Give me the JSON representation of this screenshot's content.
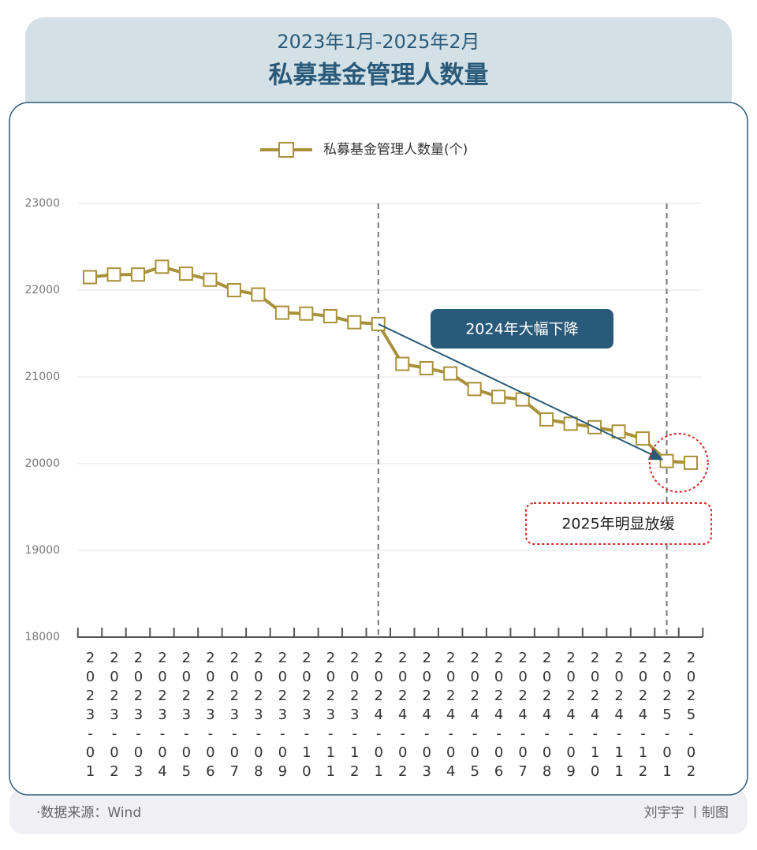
{
  "chart_data": {
    "type": "line",
    "subtitle": "2023年1月-2025年2月",
    "title": "私募基金管理人数量",
    "categories": [
      "2023-01",
      "2023-02",
      "2023-03",
      "2023-04",
      "2023-05",
      "2023-06",
      "2023-07",
      "2023-08",
      "2023-09",
      "2023-10",
      "2023-11",
      "2023-12",
      "2024-01",
      "2024-02",
      "2024-03",
      "2024-04",
      "2024-05",
      "2024-06",
      "2024-07",
      "2024-08",
      "2024-09",
      "2024-10",
      "2024-11",
      "2024-12",
      "2025-01",
      "2025-02"
    ],
    "series": [
      {
        "name": "私募基金管理人数量(个)",
        "color": "#a8913a",
        "values": [
          22150,
          22180,
          22180,
          22270,
          22190,
          22120,
          22000,
          21950,
          21740,
          21730,
          21700,
          21630,
          21610,
          21150,
          21100,
          21040,
          20860,
          20770,
          20740,
          20510,
          20460,
          20420,
          20370,
          20290,
          20030,
          20010
        ]
      }
    ],
    "ylim": [
      18000,
      23000
    ],
    "yticks": [
      18000,
      19000,
      20000,
      21000,
      22000,
      23000
    ],
    "grid": true,
    "annotations": [
      "2024年大幅下降",
      "2025年明显放缓"
    ],
    "source": "·数据来源：Wind",
    "credit": "刘宇宇 丨制图"
  }
}
